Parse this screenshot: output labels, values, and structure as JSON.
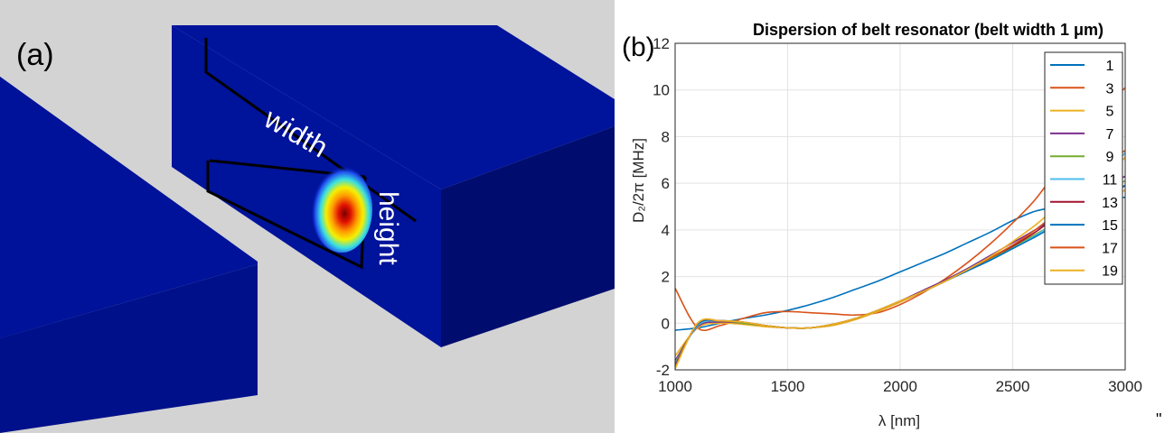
{
  "panel_a": {
    "label": "(a)",
    "width_label": "width",
    "height_label": "height",
    "colors": {
      "background": "#d3d3d3",
      "block_top": "#00139b",
      "block_front": "#00108a",
      "block_side": "#000d6e"
    }
  },
  "panel_b": {
    "label": "(b)"
  },
  "stray_mark": "\"",
  "chart_data": {
    "type": "line",
    "title": "Dispersion of belt resonator (belt width 1 μm)",
    "xlabel": "λ [nm]",
    "ylabel": "D₂/2π [MHz]",
    "xlim": [
      1000,
      3000
    ],
    "ylim": [
      -2,
      12
    ],
    "xticks": [
      "1000",
      "1500",
      "2000",
      "2500",
      "3000"
    ],
    "yticks": [
      "-2",
      "0",
      "2",
      "4",
      "6",
      "8",
      "10",
      "12"
    ],
    "grid": true,
    "legend_placement": "top-right",
    "x": [
      1000,
      1100,
      1200,
      1300,
      1400,
      1500,
      1600,
      1700,
      1800,
      1900,
      2000,
      2100,
      2200,
      2300,
      2400,
      2500,
      2600,
      2700,
      2800,
      2900,
      3000
    ],
    "series": [
      {
        "name": "1",
        "color": "#0072bd",
        "values": [
          -0.3,
          -0.2,
          0.0,
          0.2,
          0.35,
          0.55,
          0.8,
          1.1,
          1.45,
          1.8,
          2.2,
          2.6,
          3.0,
          3.45,
          3.9,
          4.4,
          4.8,
          5.0,
          5.2,
          5.3,
          5.4
        ]
      },
      {
        "name": "3",
        "color": "#d95319",
        "values": [
          1.5,
          -0.2,
          -0.1,
          0.2,
          0.45,
          0.5,
          0.45,
          0.4,
          0.35,
          0.45,
          0.8,
          1.3,
          1.9,
          2.6,
          3.4,
          4.3,
          5.3,
          6.6,
          7.9,
          9.1,
          10.1
        ]
      },
      {
        "name": "5",
        "color": "#edb120",
        "values": [
          -1.4,
          -0.2,
          0.0,
          -0.05,
          -0.15,
          -0.2,
          -0.2,
          -0.1,
          0.15,
          0.5,
          0.9,
          1.35,
          1.8,
          2.3,
          2.8,
          3.3,
          3.8,
          4.3,
          4.8,
          5.3,
          5.7
        ]
      },
      {
        "name": "7",
        "color": "#7e2f8e",
        "values": [
          -1.6,
          -0.15,
          0.05,
          0.0,
          -0.1,
          -0.2,
          -0.2,
          -0.05,
          0.2,
          0.55,
          0.95,
          1.4,
          1.85,
          2.35,
          2.9,
          3.45,
          4.0,
          4.6,
          5.2,
          5.8,
          6.3
        ]
      },
      {
        "name": "9",
        "color": "#77ac30",
        "values": [
          -1.7,
          -0.1,
          0.1,
          0.0,
          -0.1,
          -0.2,
          -0.2,
          -0.05,
          0.2,
          0.55,
          0.95,
          1.35,
          1.8,
          2.25,
          2.75,
          3.25,
          3.8,
          4.35,
          5.0,
          5.7,
          6.1
        ]
      },
      {
        "name": "11",
        "color": "#4dbeee",
        "values": [
          -1.75,
          -0.1,
          0.1,
          0.05,
          -0.1,
          -0.2,
          -0.2,
          -0.05,
          0.2,
          0.55,
          0.95,
          1.35,
          1.8,
          2.25,
          2.7,
          3.2,
          3.75,
          4.4,
          5.2,
          6.2,
          7.3
        ]
      },
      {
        "name": "13",
        "color": "#a2142f",
        "values": [
          -1.8,
          -0.05,
          0.1,
          0.05,
          -0.1,
          -0.2,
          -0.2,
          -0.05,
          0.2,
          0.55,
          0.95,
          1.35,
          1.8,
          2.3,
          2.8,
          3.3,
          3.9,
          4.6,
          5.2,
          5.6,
          5.9
        ]
      },
      {
        "name": "15",
        "color": "#0072bd",
        "values": [
          -1.85,
          -0.05,
          0.1,
          0.05,
          -0.1,
          -0.2,
          -0.2,
          -0.05,
          0.2,
          0.55,
          0.95,
          1.35,
          1.8,
          2.25,
          2.7,
          3.2,
          3.7,
          4.25,
          4.8,
          5.3,
          5.9
        ]
      },
      {
        "name": "17",
        "color": "#d95319",
        "values": [
          -1.9,
          0.0,
          0.1,
          0.05,
          -0.1,
          -0.2,
          -0.2,
          -0.05,
          0.2,
          0.55,
          0.95,
          1.35,
          1.8,
          2.3,
          2.8,
          3.35,
          4.0,
          4.8,
          5.8,
          6.8,
          7.4
        ]
      },
      {
        "name": "19",
        "color": "#edb120",
        "values": [
          -1.95,
          0.0,
          0.1,
          0.05,
          -0.1,
          -0.2,
          -0.2,
          -0.05,
          0.2,
          0.55,
          0.95,
          1.35,
          1.8,
          2.3,
          2.85,
          3.5,
          4.2,
          5.0,
          5.6,
          6.3,
          7.1
        ]
      }
    ]
  }
}
